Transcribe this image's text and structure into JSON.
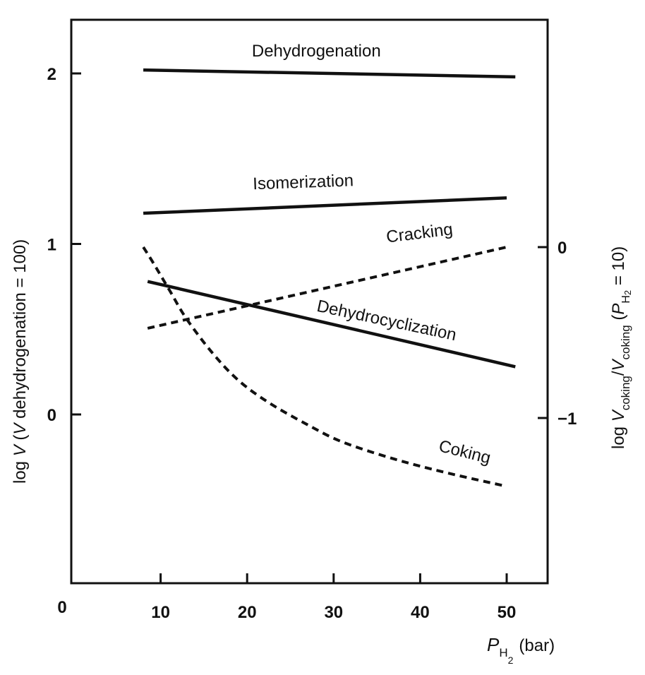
{
  "chart_data": {
    "type": "line",
    "title": "",
    "xlabel": {
      "main": "P",
      "sub": "H2",
      "sub_h": "H",
      "sub_2": "2",
      "unit": "(bar)"
    },
    "ylabel_left": {
      "prefix": "log ",
      "v": "V",
      "rest": " (",
      "v2": "V",
      "rest2": " dehydrogenation = 100)"
    },
    "ylabel_right": {
      "prefix": "log ",
      "v1": "V",
      "sub1": "coking",
      "slash": "/",
      "v2": "V",
      "sub2": "coking",
      "open": " (",
      "p": "P",
      "psub_h": "H",
      "psub_2": "2",
      "close": " = 10)"
    },
    "xlim": [
      0,
      55
    ],
    "ylim_left": [
      -1,
      2.31
    ],
    "ylim_right": [
      -1.98,
      1.4
    ],
    "x_ticks": [
      "0",
      "10",
      "20",
      "30",
      "40",
      "50"
    ],
    "x_tick_values": [
      0,
      10,
      20,
      30,
      40,
      50
    ],
    "y_ticks_left": [
      "0",
      "1",
      "2"
    ],
    "y_tick_values_left": [
      0,
      1,
      2
    ],
    "y_ticks_right": [
      "−1",
      "0"
    ],
    "y_tick_values_right": [
      -1,
      0
    ],
    "series": [
      {
        "name": "Dehydrogenation",
        "axis": "left",
        "style": "solid",
        "x": [
          8,
          51
        ],
        "y": [
          2.02,
          1.98
        ],
        "label_at": [
          28,
          2.1
        ]
      },
      {
        "name": "Isomerization",
        "axis": "left",
        "style": "solid",
        "x": [
          8,
          50
        ],
        "y": [
          1.18,
          1.27
        ],
        "label_at": [
          26.5,
          1.33
        ],
        "label_rot": -2
      },
      {
        "name": "Cracking",
        "axis": "right",
        "style": "dashed",
        "x": [
          8.5,
          50
        ],
        "y": [
          -0.475,
          0.0
        ],
        "label_at": [
          40,
          0.05
        ],
        "label_rot": -7
      },
      {
        "name": "Dehydrocyclization",
        "axis": "left",
        "style": "solid",
        "x": [
          8.5,
          51
        ],
        "y": [
          0.78,
          0.28
        ],
        "label_at": [
          36,
          0.52
        ],
        "label_rot": 12
      },
      {
        "name": "Coking",
        "axis": "right",
        "style": "dashed",
        "x": [
          8,
          9,
          11,
          13,
          16,
          19,
          22.5,
          27,
          31,
          37,
          43,
          50
        ],
        "y": [
          0.0,
          -0.08,
          -0.25,
          -0.42,
          -0.62,
          -0.78,
          -0.91,
          -1.04,
          -1.14,
          -1.24,
          -1.32,
          -1.4
        ],
        "label_at": [
          45,
          -1.23
        ],
        "label_rot": 14
      }
    ]
  }
}
